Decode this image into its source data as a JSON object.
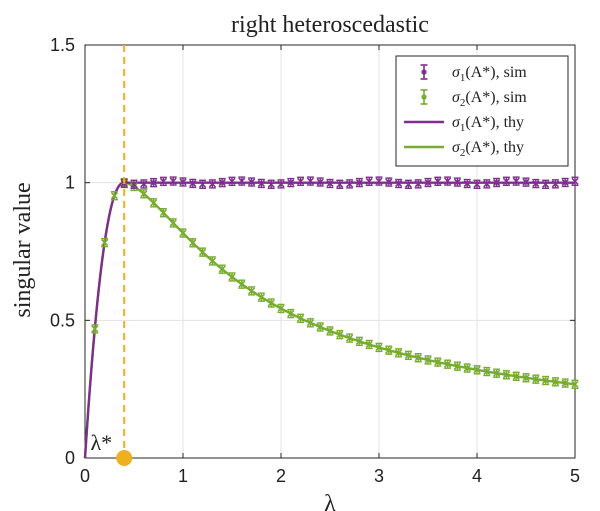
{
  "chart_data": {
    "type": "line",
    "title": "right heteroscedastic",
    "xlabel": "λ",
    "ylabel": "singular value",
    "xlim": [
      0,
      5
    ],
    "ylim": [
      0,
      1.5
    ],
    "xticks": [
      "0",
      "1",
      "2",
      "3",
      "4",
      "5"
    ],
    "yticks": [
      "0",
      "0.5",
      "1",
      "1.5"
    ],
    "grid": true,
    "legend_placement": "top-right",
    "colors": {
      "sigma1": "#7e2f8e",
      "sigma2": "#77ac30",
      "threshold": "#edb120"
    },
    "threshold": {
      "x": 0.4,
      "label": "λ*"
    },
    "series": [
      {
        "name": "σ1(A*), sim",
        "kind": "errorbar",
        "color": "#7e2f8e"
      },
      {
        "name": "σ2(A*), sim",
        "kind": "errorbar",
        "color": "#77ac30"
      },
      {
        "name": "σ1(A*), thy",
        "kind": "line",
        "color": "#7e2f8e"
      },
      {
        "name": "σ2(A*), thy",
        "kind": "line",
        "color": "#77ac30"
      }
    ],
    "legend": {
      "s1sim": {
        "sym": "σ",
        "sub": "1",
        "rest": "(A*), sim"
      },
      "s2sim": {
        "sym": "σ",
        "sub": "2",
        "rest": "(A*), sim"
      },
      "s1thy": {
        "sym": "σ",
        "sub": "1",
        "rest": "(A*), thy"
      },
      "s2thy": {
        "sym": "σ",
        "sub": "2",
        "rest": "(A*), thy"
      }
    }
  }
}
